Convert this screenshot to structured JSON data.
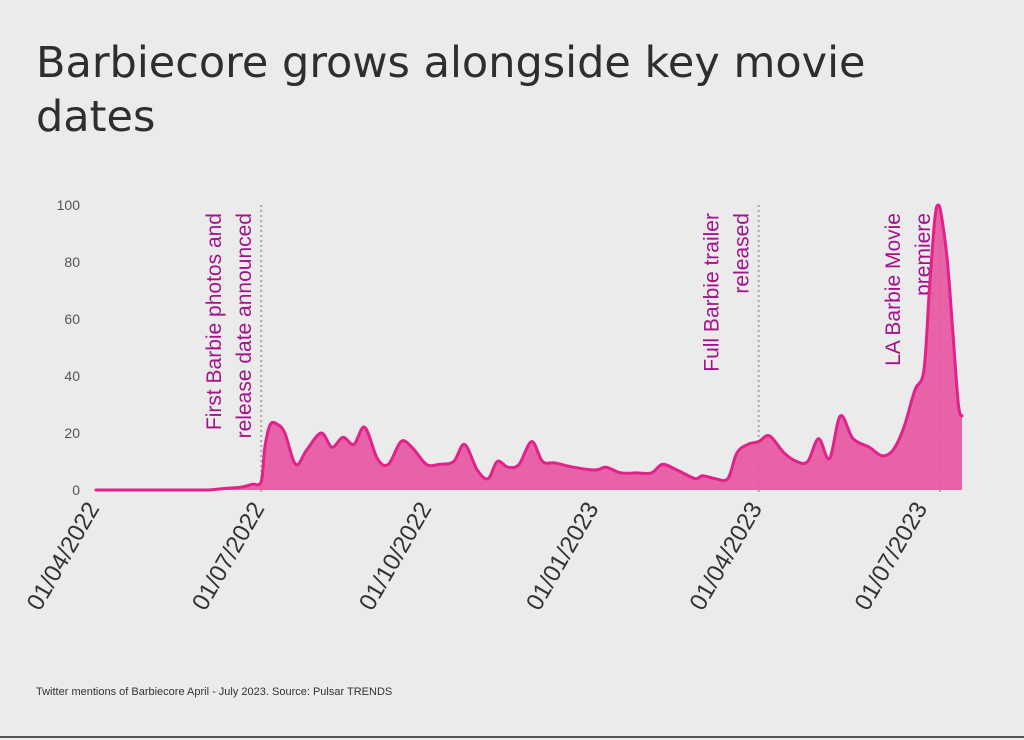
{
  "title": "Barbiecore grows alongside key movie dates",
  "caption": "Twitter mentions of Barbiecore April - July 2023. Source: Pulsar TRENDS",
  "colors": {
    "fill": "#e7539f",
    "line": "#e0228a",
    "annotation": "#a3128a",
    "axis_text": "#555555",
    "marker_line": "#a9a9a9"
  },
  "chart_data": {
    "type": "area",
    "title": "Barbiecore grows alongside key movie dates",
    "xlabel": "",
    "ylabel": "",
    "ylim": [
      0,
      100
    ],
    "yticks": [
      0,
      20,
      40,
      60,
      80,
      100
    ],
    "xlim": [
      "2022-04-01",
      "2023-07-22"
    ],
    "xticks": [
      "2022-04-01",
      "2022-07-01",
      "2022-10-01",
      "2023-01-01",
      "2023-04-01",
      "2023-07-01"
    ],
    "xtick_labels": [
      "01/04/2022",
      "01/07/2022",
      "01/10/2022",
      "01/01/2023",
      "01/04/2023",
      "01/07/2023"
    ],
    "grid": false,
    "series": [
      {
        "points": [
          [
            "2022-04-01",
            0
          ],
          [
            "2022-04-15",
            0
          ],
          [
            "2022-05-01",
            0
          ],
          [
            "2022-05-15",
            0
          ],
          [
            "2022-06-01",
            0
          ],
          [
            "2022-06-10",
            0.5
          ],
          [
            "2022-06-20",
            1
          ],
          [
            "2022-06-26",
            2
          ],
          [
            "2022-07-01",
            3
          ],
          [
            "2022-07-03",
            15
          ],
          [
            "2022-07-06",
            23
          ],
          [
            "2022-07-10",
            23
          ],
          [
            "2022-07-14",
            20
          ],
          [
            "2022-07-20",
            9
          ],
          [
            "2022-07-26",
            14
          ],
          [
            "2022-08-03",
            20
          ],
          [
            "2022-08-09",
            15
          ],
          [
            "2022-08-15",
            18.5
          ],
          [
            "2022-08-21",
            16
          ],
          [
            "2022-08-27",
            22
          ],
          [
            "2022-09-03",
            11
          ],
          [
            "2022-09-09",
            9
          ],
          [
            "2022-09-16",
            17
          ],
          [
            "2022-09-22",
            15
          ],
          [
            "2022-09-30",
            9
          ],
          [
            "2022-10-07",
            9
          ],
          [
            "2022-10-15",
            10
          ],
          [
            "2022-10-21",
            16
          ],
          [
            "2022-10-28",
            7
          ],
          [
            "2022-11-03",
            4
          ],
          [
            "2022-11-08",
            10
          ],
          [
            "2022-11-14",
            8
          ],
          [
            "2022-11-20",
            9
          ],
          [
            "2022-11-27",
            17
          ],
          [
            "2022-12-03",
            10
          ],
          [
            "2022-12-10",
            9.5
          ],
          [
            "2022-12-20",
            8
          ],
          [
            "2023-01-01",
            7
          ],
          [
            "2023-01-07",
            8
          ],
          [
            "2023-01-15",
            6
          ],
          [
            "2023-01-24",
            6
          ],
          [
            "2023-02-01",
            6
          ],
          [
            "2023-02-07",
            9
          ],
          [
            "2023-02-15",
            7
          ],
          [
            "2023-02-25",
            4
          ],
          [
            "2023-03-01",
            5
          ],
          [
            "2023-03-08",
            4
          ],
          [
            "2023-03-15",
            4
          ],
          [
            "2023-03-20",
            13
          ],
          [
            "2023-03-26",
            16
          ],
          [
            "2023-04-01",
            17
          ],
          [
            "2023-04-07",
            19
          ],
          [
            "2023-04-15",
            13
          ],
          [
            "2023-04-22",
            10
          ],
          [
            "2023-04-28",
            10
          ],
          [
            "2023-05-04",
            18
          ],
          [
            "2023-05-10",
            11
          ],
          [
            "2023-05-16",
            26
          ],
          [
            "2023-05-23",
            18
          ],
          [
            "2023-06-01",
            15
          ],
          [
            "2023-06-08",
            12
          ],
          [
            "2023-06-14",
            14
          ],
          [
            "2023-06-20",
            22
          ],
          [
            "2023-06-26",
            35
          ],
          [
            "2023-07-01",
            42
          ],
          [
            "2023-07-04",
            70
          ],
          [
            "2023-07-07",
            95
          ],
          [
            "2023-07-09",
            100
          ],
          [
            "2023-07-11",
            95
          ],
          [
            "2023-07-14",
            80
          ],
          [
            "2023-07-17",
            55
          ],
          [
            "2023-07-20",
            30
          ],
          [
            "2023-07-22",
            26
          ]
        ]
      }
    ],
    "annotations": [
      {
        "date": "2022-07-01",
        "lines": [
          "First Barbie photos and",
          "release date announced"
        ]
      },
      {
        "date": "2023-04-01",
        "lines": [
          "Full Barbie trailer",
          "released"
        ]
      },
      {
        "date": "2023-07-10",
        "lines": [
          "LA Barbie Movie",
          "premiere"
        ]
      }
    ]
  }
}
